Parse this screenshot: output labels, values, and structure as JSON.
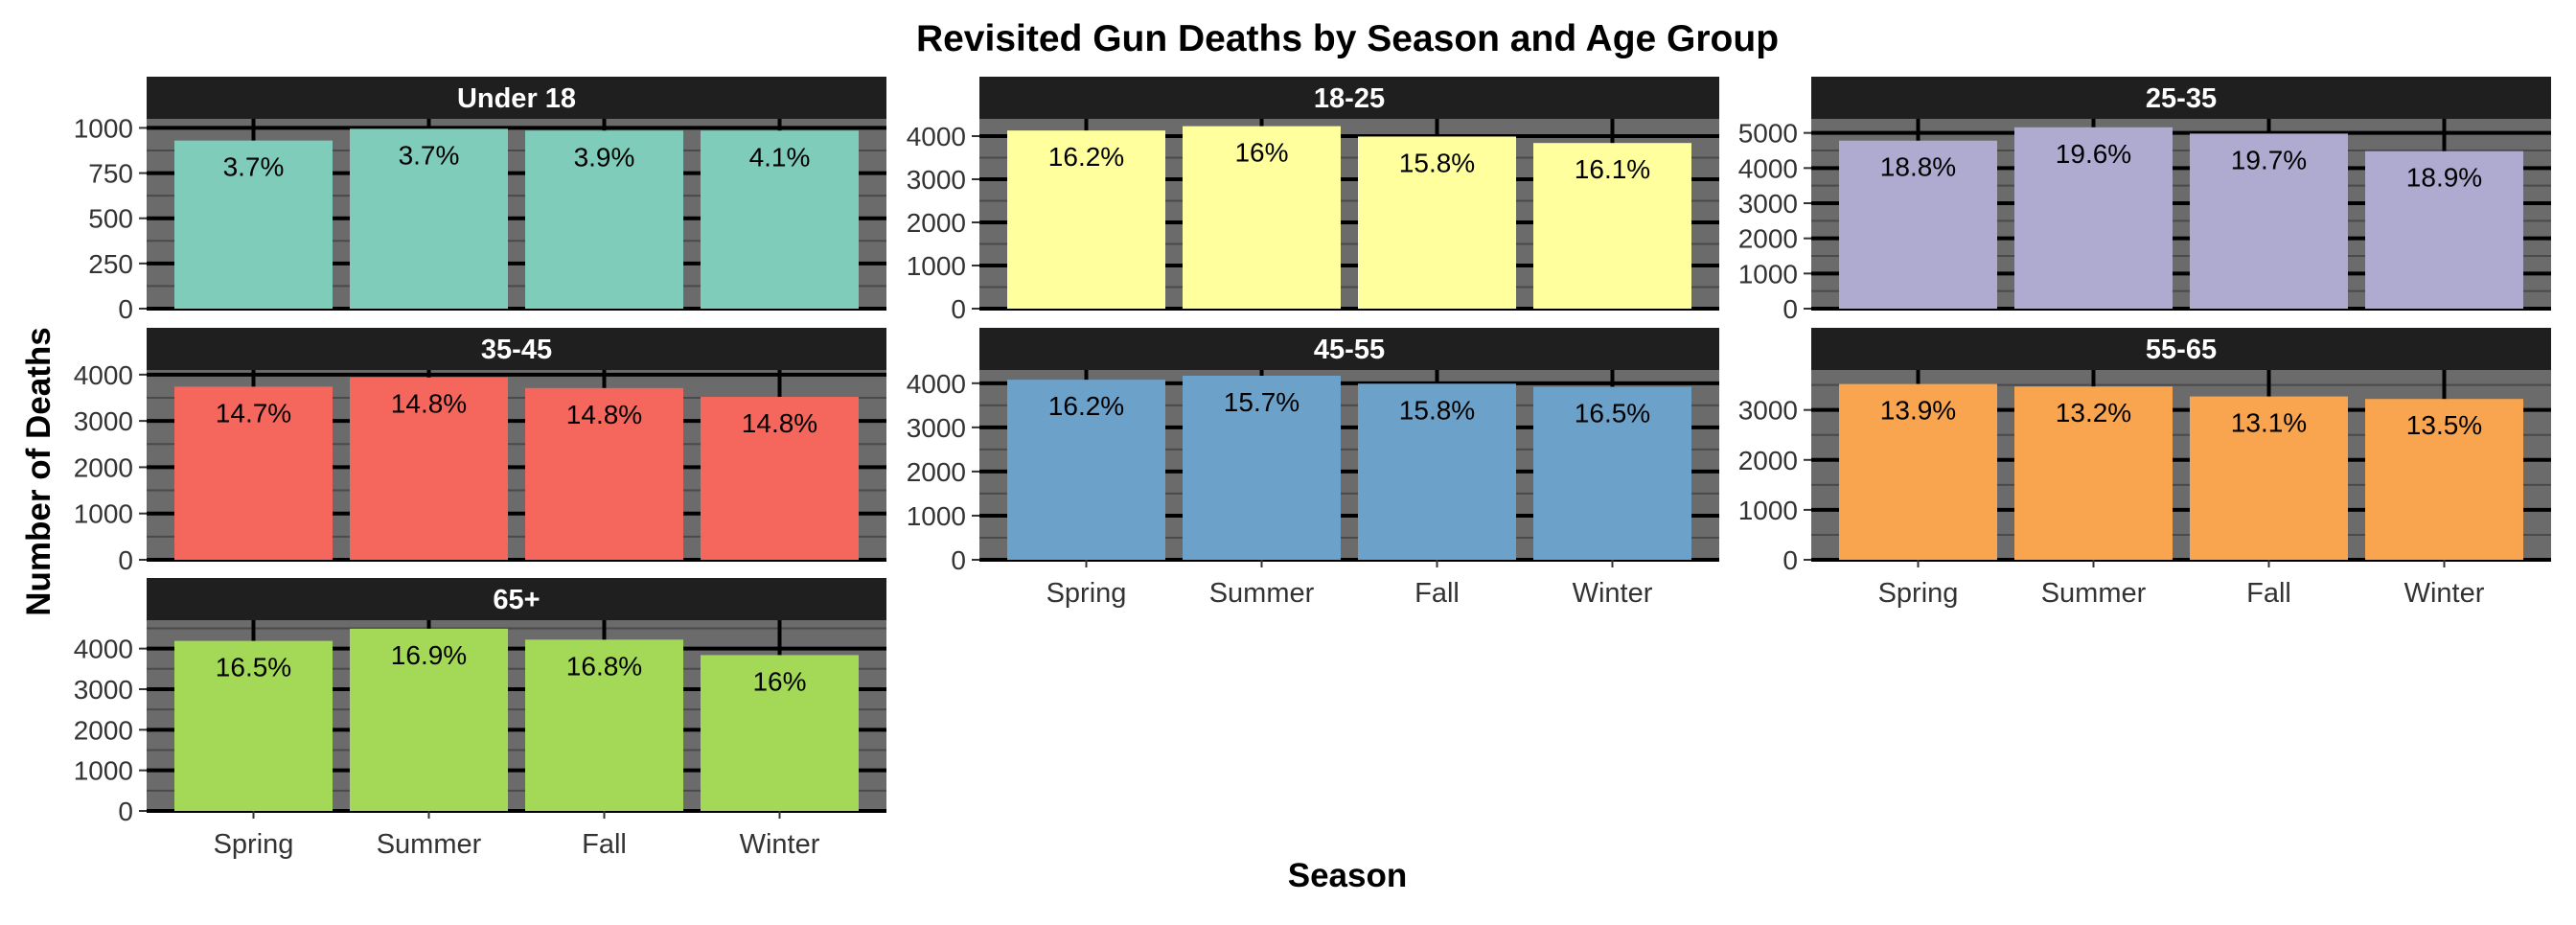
{
  "chart_data": {
    "type": "bar",
    "title": "Revisited Gun Deaths by Season and Age Group",
    "xlabel": "Season",
    "ylabel": "Number of Deaths",
    "categories": [
      "Spring",
      "Summer",
      "Fall",
      "Winter"
    ],
    "legend": "none",
    "grid": true,
    "facets": [
      {
        "name": "Under 18",
        "color": "#7fccbb",
        "ylim": [
          0,
          1050
        ],
        "yticks": [
          0,
          250,
          500,
          750,
          1000
        ],
        "values": [
          930,
          995,
          985,
          985
        ],
        "labels": [
          "3.7%",
          "3.7%",
          "3.9%",
          "4.1%"
        ]
      },
      {
        "name": "18-25",
        "color": "#ffff9e",
        "ylim": [
          0,
          4400
        ],
        "yticks": [
          0,
          1000,
          2000,
          3000,
          4000
        ],
        "values": [
          4130,
          4230,
          3990,
          3840
        ],
        "labels": [
          "16.2%",
          "16%",
          "15.8%",
          "16.1%"
        ]
      },
      {
        "name": "25-35",
        "color": "#aeaad0",
        "ylim": [
          0,
          5400
        ],
        "yticks": [
          0,
          1000,
          2000,
          3000,
          4000,
          5000
        ],
        "values": [
          4780,
          5160,
          4980,
          4480
        ],
        "labels": [
          "18.8%",
          "19.6%",
          "19.7%",
          "18.9%"
        ]
      },
      {
        "name": "35-45",
        "color": "#f5675d",
        "ylim": [
          0,
          4100
        ],
        "yticks": [
          0,
          1000,
          2000,
          3000,
          4000
        ],
        "values": [
          3740,
          3940,
          3710,
          3520
        ],
        "labels": [
          "14.7%",
          "14.8%",
          "14.8%",
          "14.8%"
        ]
      },
      {
        "name": "45-55",
        "color": "#6ca1c9",
        "ylim": [
          0,
          4300
        ],
        "yticks": [
          0,
          1000,
          2000,
          3000,
          4000
        ],
        "values": [
          4080,
          4170,
          3990,
          3920
        ],
        "labels": [
          "16.2%",
          "15.7%",
          "15.8%",
          "16.5%"
        ]
      },
      {
        "name": "55-65",
        "color": "#f9a44f",
        "ylim": [
          0,
          3800
        ],
        "yticks": [
          0,
          1000,
          2000,
          3000
        ],
        "values": [
          3520,
          3470,
          3270,
          3220
        ],
        "labels": [
          "13.9%",
          "13.2%",
          "13.1%",
          "13.5%"
        ]
      },
      {
        "name": "65+",
        "color": "#a3d956",
        "ylim": [
          0,
          4700
        ],
        "yticks": [
          0,
          1000,
          2000,
          3000,
          4000
        ],
        "values": [
          4190,
          4490,
          4220,
          3840
        ],
        "labels": [
          "16.5%",
          "16.9%",
          "16.8%",
          "16%"
        ]
      }
    ]
  }
}
